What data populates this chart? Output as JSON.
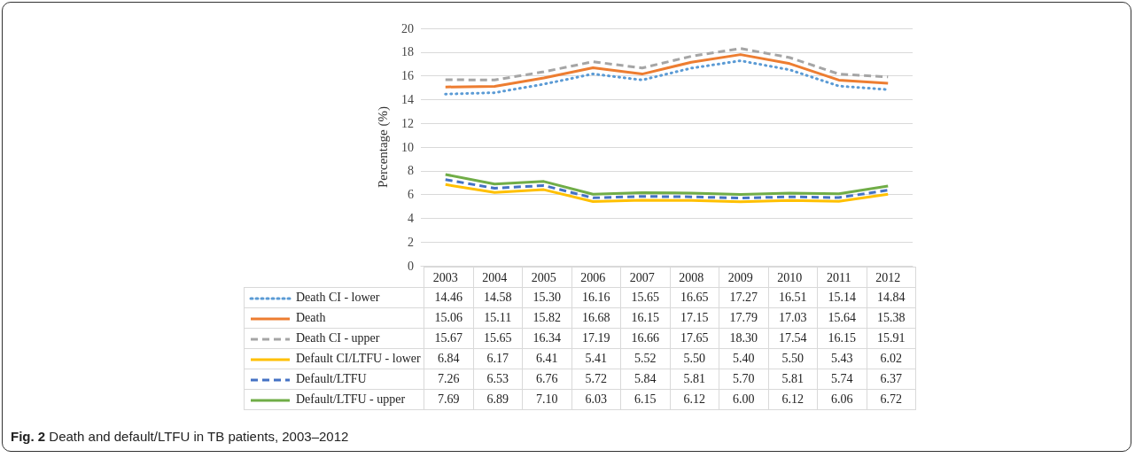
{
  "chart_data": {
    "type": "line",
    "ylabel": "Percentage (%)",
    "categories": [
      "2003",
      "2004",
      "2005",
      "2006",
      "2007",
      "2008",
      "2009",
      "2010",
      "2011",
      "2012"
    ],
    "series": [
      {
        "name": "Death CI - lower",
        "color": "#5b9bd5",
        "line_style": "dotted",
        "values": [
          14.46,
          14.58,
          15.3,
          16.16,
          15.65,
          16.65,
          17.27,
          16.51,
          15.14,
          14.84
        ],
        "value_labels": [
          "14.46",
          "14.58",
          "15.30",
          "16.16",
          "15.65",
          "16.65",
          "17.27",
          "16.51",
          "15.14",
          "14.84"
        ]
      },
      {
        "name": "Death",
        "color": "#ed7d31",
        "line_style": "solid",
        "values": [
          15.06,
          15.11,
          15.82,
          16.68,
          16.15,
          17.15,
          17.79,
          17.03,
          15.64,
          15.38
        ],
        "value_labels": [
          "15.06",
          "15.11",
          "15.82",
          "16.68",
          "16.15",
          "17.15",
          "17.79",
          "17.03",
          "15.64",
          "15.38"
        ]
      },
      {
        "name": "Death CI - upper",
        "color": "#a5a5a5",
        "line_style": "dashed",
        "values": [
          15.67,
          15.65,
          16.34,
          17.19,
          16.66,
          17.65,
          18.3,
          17.54,
          16.15,
          15.91
        ],
        "value_labels": [
          "15.67",
          "15.65",
          "16.34",
          "17.19",
          "16.66",
          "17.65",
          "18.30",
          "17.54",
          "16.15",
          "15.91"
        ]
      },
      {
        "name": "Default CI/LTFU - lower",
        "color": "#ffc000",
        "line_style": "solid",
        "values": [
          6.84,
          6.17,
          6.41,
          5.41,
          5.52,
          5.5,
          5.4,
          5.5,
          5.43,
          6.02
        ],
        "value_labels": [
          "6.84",
          "6.17",
          "6.41",
          "5.41",
          "5.52",
          "5.50",
          "5.40",
          "5.50",
          "5.43",
          "6.02"
        ]
      },
      {
        "name": "Default/LTFU",
        "color": "#4472c4",
        "line_style": "dashed",
        "values": [
          7.26,
          6.53,
          6.76,
          5.72,
          5.84,
          5.81,
          5.7,
          5.81,
          5.74,
          6.37
        ],
        "value_labels": [
          "7.26",
          "6.53",
          "6.76",
          "5.72",
          "5.84",
          "5.81",
          "5.70",
          "5.81",
          "5.74",
          "6.37"
        ]
      },
      {
        "name": "Default/LTFU - upper",
        "color": "#70ad47",
        "line_style": "solid",
        "values": [
          7.69,
          6.89,
          7.1,
          6.03,
          6.15,
          6.12,
          6.0,
          6.12,
          6.06,
          6.72
        ],
        "value_labels": [
          "7.69",
          "6.89",
          "7.10",
          "6.03",
          "6.15",
          "6.12",
          "6.00",
          "6.12",
          "6.06",
          "6.72"
        ]
      }
    ],
    "ylim": [
      0,
      20
    ],
    "yticks": [
      0,
      2,
      4,
      6,
      8,
      10,
      12,
      14,
      16,
      18,
      20
    ],
    "grid": "y",
    "legend": "bottom",
    "marker": "none",
    "annotations": [
      "Fig. 2 Death and default/LTFU in TB patients, 2003–2012"
    ]
  }
}
